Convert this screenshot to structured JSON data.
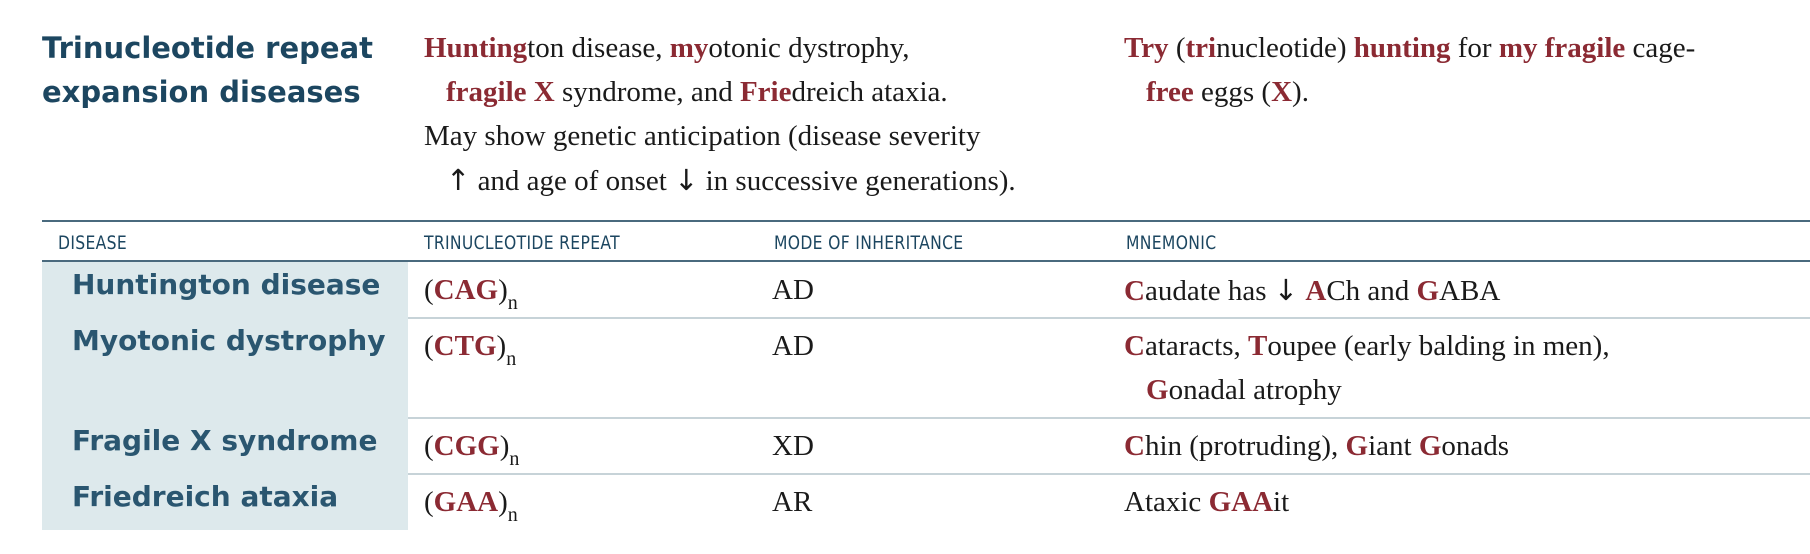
{
  "heading": {
    "line1": "Trinucleotide repeat",
    "line2": "expansion diseases"
  },
  "description": {
    "l1_hl1": "Hunting",
    "l1_t1": "ton disease, ",
    "l1_hl2": "my",
    "l1_t2": "otonic dystrophy,",
    "l2_hl1": "fragile X",
    "l2_t1": " syndrome, and ",
    "l2_hl2": "Frie",
    "l2_t2": "dreich ataxia.",
    "l3": "May show genetic anticipation (disease severity",
    "l4_up": "↑",
    "l4_t1": " and age of onset ",
    "l4_down": "↓",
    "l4_t2": " in successive generations)."
  },
  "mnemonic_top": {
    "hl1": "Try",
    "t1": " (",
    "hl2": "tri",
    "t2": "nucleotide) ",
    "hl3": "hunting",
    "t3": " for ",
    "hl4": "my fragile",
    "t4": " cage-",
    "hl5": "free",
    "t5": " eggs (",
    "hl6": "X",
    "t6": ")."
  },
  "table": {
    "headers": {
      "disease": "DISEASE",
      "repeat": "TRINUCLEOTIDE REPEAT",
      "mode": "MODE OF INHERITANCE",
      "mnemonic": "MNEMONIC"
    },
    "rows": [
      {
        "disease": "Huntington disease",
        "repeat_open": "(",
        "repeat": "CAG",
        "repeat_close": ")",
        "sub": "n",
        "mode": "AD",
        "m": {
          "a1": "C",
          "a2": "audate has ",
          "a3": "↓",
          "a4": " ",
          "a5": "A",
          "a6": "Ch and ",
          "a7": "G",
          "a8": "ABA"
        }
      },
      {
        "disease": "Myotonic dystrophy",
        "repeat_open": "(",
        "repeat": "CTG",
        "repeat_close": ")",
        "sub": "n",
        "mode": "AD",
        "m": {
          "a1": "C",
          "a2": "ataracts, ",
          "a3": "T",
          "a4": "oupee (early balding in men),",
          "a5": "G",
          "a6": "onadal atrophy"
        }
      },
      {
        "disease": "Fragile X syndrome",
        "repeat_open": "(",
        "repeat": "CGG",
        "repeat_close": ")",
        "sub": "n",
        "mode": "XD",
        "m": {
          "a1": "C",
          "a2": "hin (protruding), ",
          "a3": "G",
          "a4": "iant ",
          "a5": "G",
          "a6": "onads"
        }
      },
      {
        "disease": "Friedreich ataxia",
        "repeat_open": "(",
        "repeat": "GAA",
        "repeat_close": ")",
        "sub": "n",
        "mode": "AR",
        "m": {
          "a1": "Ataxic ",
          "a2": "GAA",
          "a3": "it"
        }
      }
    ]
  },
  "colors": {
    "highlight": "#8b2a33",
    "heading": "#1c4660",
    "name_cell_bg": "#dde9ec"
  }
}
